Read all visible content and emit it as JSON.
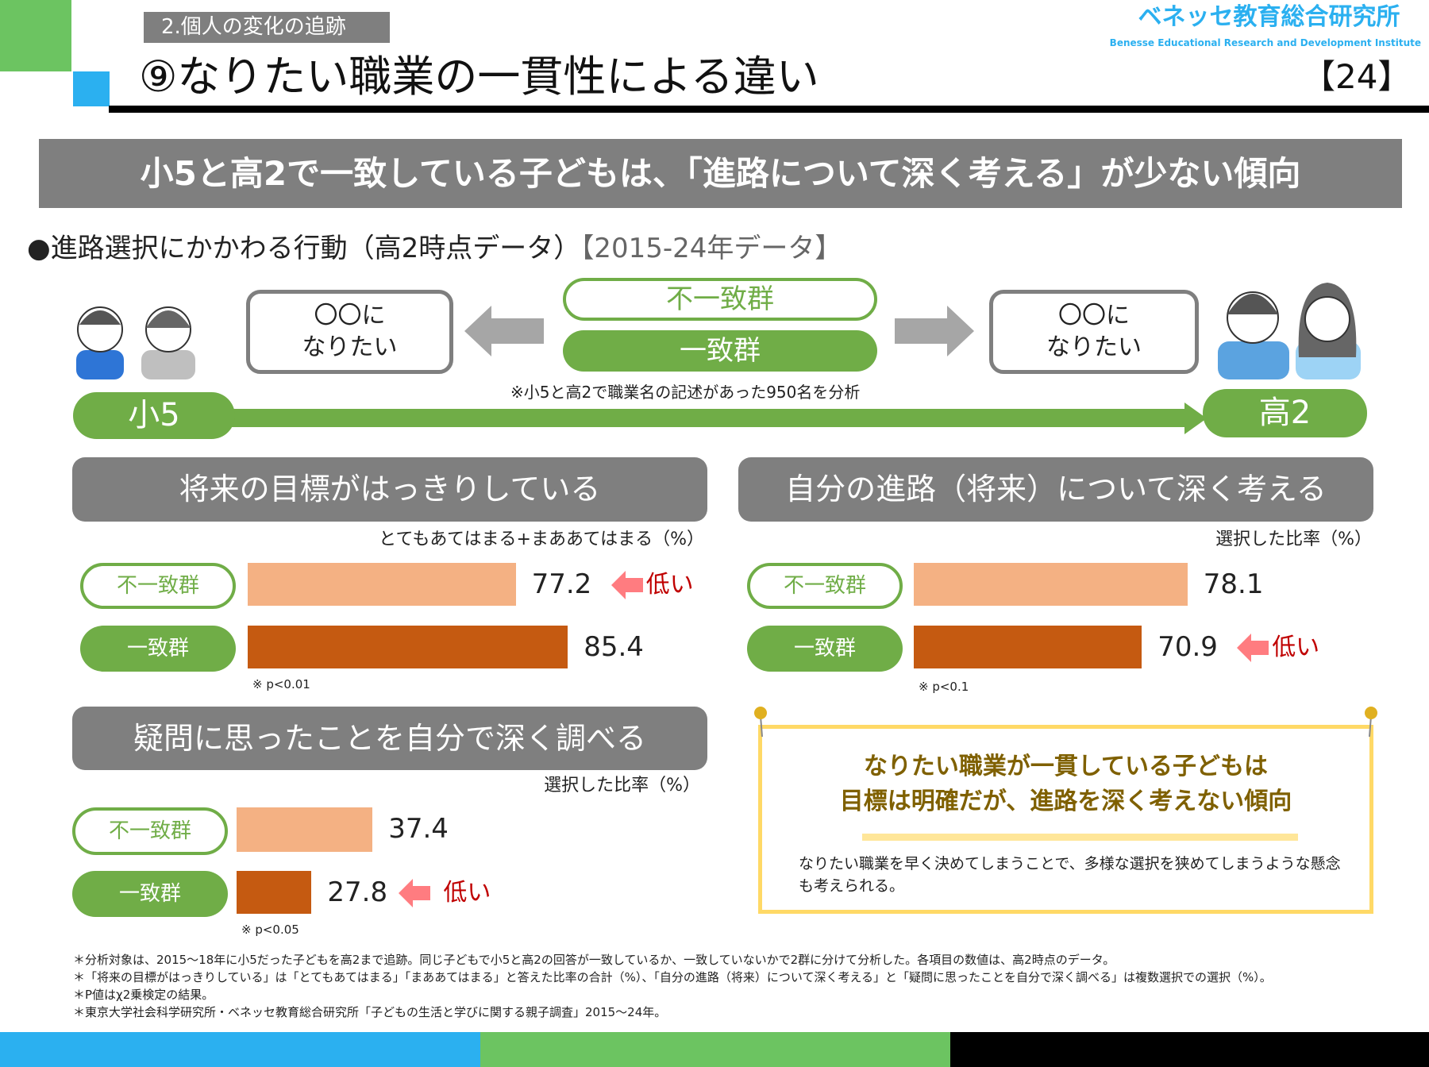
{
  "header": {
    "section_tag": "2.個人の変化の追跡",
    "title": "⑨なりたい職業の一貫性による違い",
    "page_number": "【24】",
    "logo_ja": "ベネッセ教育総合研究所",
    "logo_en": "Benesse  Educational Research and Development Institute"
  },
  "banner": "小5と高2で一致している子どもは、「進路について深く考える」が少ない傾向",
  "section": {
    "heading": "●進路選択にかかわる行動（高2時点データ）",
    "years": "【2015-24年データ】"
  },
  "diagram": {
    "bubble_left": [
      "〇〇に",
      "なりたい"
    ],
    "bubble_right": [
      "〇〇に",
      "なりたい"
    ],
    "group_mismatch": "不一致群",
    "group_match": "一致群",
    "note": "※小5と高2で職業名の記述があった950名を分析",
    "start": "小5",
    "end": "高2"
  },
  "colors": {
    "green": "#70ad47",
    "light_bar": "#f4b183",
    "dark_bar": "#c55a11",
    "gray": "#7f7f7f",
    "arrow": "#ff7c80",
    "low_text": "#c00000"
  },
  "chart_data": [
    {
      "type": "bar",
      "orientation": "horizontal",
      "title": "将来の目標がはっきりしている",
      "unit_label": "とてもあてはまる+まああてはまる（%）",
      "categories": [
        "不一致群",
        "一致群"
      ],
      "values": [
        77.2,
        85.4
      ],
      "xlim": [
        35,
        100
      ],
      "annotation": {
        "target": "不一致群",
        "text": "低い"
      },
      "p_note": "※ p<0.01"
    },
    {
      "type": "bar",
      "orientation": "horizontal",
      "title": "自分の進路（将来）について深く考える",
      "unit_label": "選択した比率（%）",
      "categories": [
        "不一致群",
        "一致群"
      ],
      "values": [
        78.1,
        70.9
      ],
      "xlim": [
        35,
        100
      ],
      "annotation": {
        "target": "一致群",
        "text": "低い"
      },
      "p_note": "※ p<0.1"
    },
    {
      "type": "bar",
      "orientation": "horizontal",
      "title": "疑問に思ったことを自分で深く調べる",
      "unit_label": "選択した比率（%）",
      "categories": [
        "不一致群",
        "一致群"
      ],
      "values": [
        37.4,
        27.8
      ],
      "xlim": [
        16,
        100
      ],
      "annotation": {
        "target": "一致群",
        "text": "低い"
      },
      "p_note": "※ p<0.05"
    }
  ],
  "summary": {
    "headline": [
      "なりたい職業が一貫している子どもは",
      "目標は明確だが、進路を深く考えない傾向"
    ],
    "body": "なりたい職業を早く決めてしまうことで、多様な選択を狭めてしまうような懸念も考えられる。"
  },
  "footnotes": [
    "＊分析対象は、2015～18年に小5だった子どもを高2まで追跡。同じ子どもで小5と高2の回答が一致しているか、一致していないかで2群に分けて分析した。各項目の数値は、高2時点のデータ。",
    "＊「将来の目標がはっきりしている」は「とてもあてはまる」「まああてはまる」と答えた比率の合計（%）、「自分の進路（将来）について深く考える」と「疑問に思ったことを自分で深く調べる」は複数選択での選択（%）。",
    "＊P値はχ2乗検定の結果。",
    "＊東京大学社会科学研究所・ベネッセ教育総合研究所「子どもの生活と学びに関する親子調査」2015～24年。"
  ]
}
